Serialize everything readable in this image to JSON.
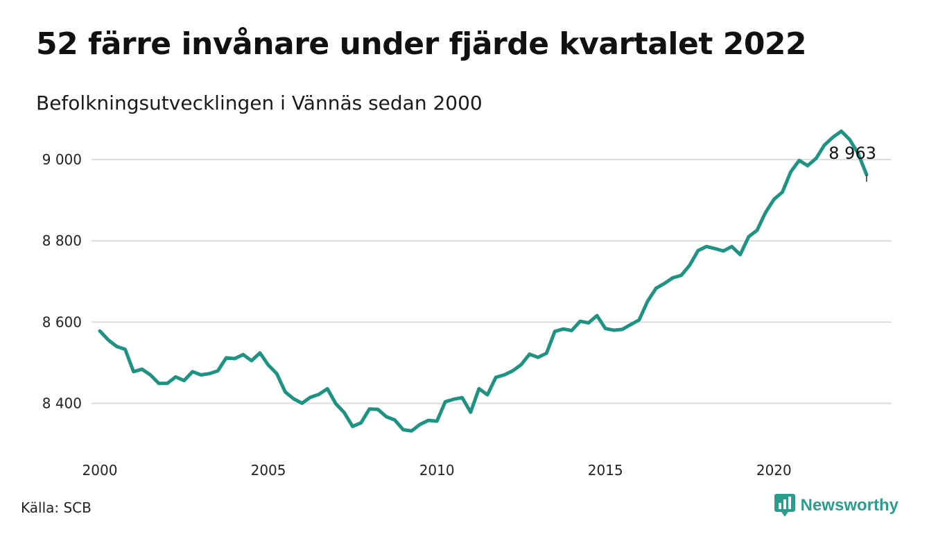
{
  "header": {
    "title": "52 färre invånare under fjärde kvartalet 2022",
    "subtitle": "Befolkningsutvecklingen i Vännäs sedan 2000"
  },
  "footer": {
    "source": "Källa: SCB",
    "brand": "Newsworthy",
    "brand_icon": "bar-chart-speech-bubble-icon"
  },
  "colors": {
    "line": "#1f9383",
    "grid": "#dddddd",
    "brand": "#2a9d8f"
  },
  "chart_data": {
    "type": "line",
    "title": "52 färre invånare under fjärde kvartalet 2022",
    "subtitle": "Befolkningsutvecklingen i Vännäs sedan 2000",
    "xlabel": "",
    "ylabel": "",
    "grid": "horizontal",
    "legend": "none",
    "xlim": [
      2000,
      2022.75
    ],
    "ylim": [
      8300,
      9060
    ],
    "y_ticks": [
      8400,
      8600,
      8800,
      9000
    ],
    "y_tick_labels": [
      "8 400",
      "8 600",
      "8 800",
      "9 000"
    ],
    "x_ticks": [
      2000,
      2005,
      2010,
      2015,
      2020
    ],
    "x_tick_labels": [
      "2000",
      "2005",
      "2010",
      "2015",
      "2020"
    ],
    "annotation": {
      "label": "8 963",
      "x": 2022.75,
      "y": 8963
    },
    "series": [
      {
        "x": [
          2000,
          2000.25,
          2000.5,
          2000.75,
          2001,
          2001.25,
          2001.5,
          2001.75,
          2002,
          2002.25,
          2002.5,
          2002.75,
          2003,
          2003.25,
          2003.5,
          2003.75,
          2004,
          2004.25,
          2004.5,
          2004.75,
          2005,
          2005.25,
          2005.5,
          2005.75,
          2006,
          2006.25,
          2006.5,
          2006.75,
          2007,
          2007.25,
          2007.5,
          2007.75,
          2008,
          2008.25,
          2008.5,
          2008.75,
          2009,
          2009.25,
          2009.5,
          2009.75,
          2010,
          2010.25,
          2010.5,
          2010.75,
          2011,
          2011.25,
          2011.5,
          2011.75,
          2012,
          2012.25,
          2012.5,
          2012.75,
          2013,
          2013.25,
          2013.5,
          2013.75,
          2014,
          2014.25,
          2014.5,
          2014.75,
          2015,
          2015.25,
          2015.5,
          2015.75,
          2016,
          2016.25,
          2016.5,
          2016.75,
          2017,
          2017.25,
          2017.5,
          2017.75,
          2018,
          2018.25,
          2018.5,
          2018.75,
          2019,
          2019.25,
          2019.5,
          2019.75,
          2020,
          2020.25,
          2020.5,
          2020.75,
          2021,
          2021.25,
          2021.5,
          2021.75,
          2022,
          2022.25,
          2022.5,
          2022.75
        ],
        "values": [
          8578,
          8556,
          8540,
          8533,
          8478,
          8484,
          8470,
          8449,
          8449,
          8465,
          8456,
          8478,
          8470,
          8473,
          8480,
          8512,
          8510,
          8520,
          8505,
          8524,
          8494,
          8473,
          8428,
          8411,
          8400,
          8415,
          8422,
          8436,
          8399,
          8377,
          8343,
          8352,
          8386,
          8385,
          8367,
          8359,
          8335,
          8332,
          8348,
          8358,
          8356,
          8404,
          8410,
          8414,
          8378,
          8436,
          8421,
          8464,
          8470,
          8480,
          8495,
          8521,
          8513,
          8523,
          8577,
          8583,
          8579,
          8602,
          8598,
          8616,
          8584,
          8580,
          8582,
          8594,
          8605,
          8651,
          8683,
          8695,
          8709,
          8715,
          8740,
          8776,
          8786,
          8781,
          8775,
          8786,
          8766,
          8810,
          8826,
          8870,
          8902,
          8920,
          8970,
          8998,
          8985,
          9003,
          9036,
          9055,
          9070,
          9049,
          9015,
          8963
        ]
      }
    ]
  }
}
